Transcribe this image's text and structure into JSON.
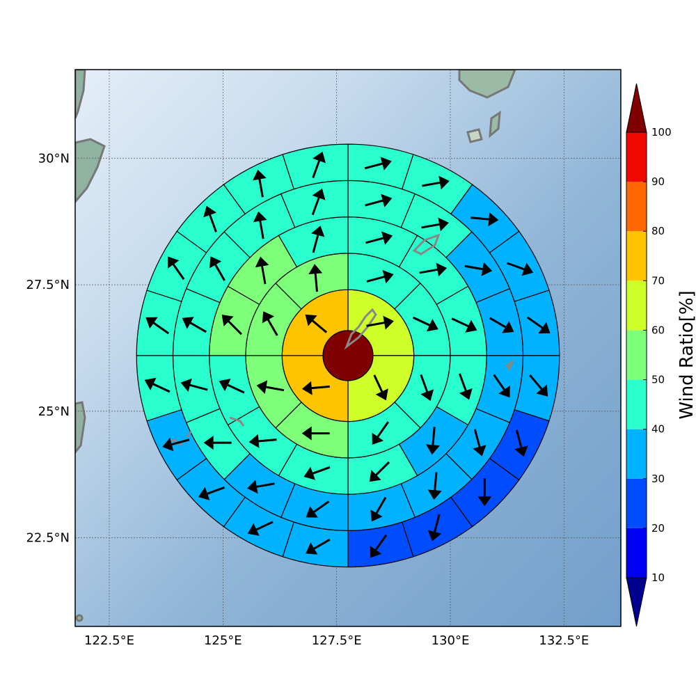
{
  "chart_data": {
    "type": "polar-sector-map",
    "map": {
      "lon_range": [
        121.75,
        133.75
      ],
      "lat_range": [
        20.75,
        31.75
      ],
      "lon_ticks": [
        122.5,
        125,
        127.5,
        130,
        132.5
      ],
      "lon_tick_labels": [
        "122.5°E",
        "125°E",
        "127.5°E",
        "130°E",
        "132.5°E"
      ],
      "lat_ticks": [
        22.5,
        25,
        27.5,
        30
      ],
      "lat_tick_labels": [
        "22.5°N",
        "25°N",
        "27.5°N",
        "30°N"
      ],
      "gridlines": true,
      "center": {
        "lon": 127.75,
        "lat": 26.1
      }
    },
    "colorbar": {
      "label": "Wind Ratio[%]",
      "ticks": [
        10,
        20,
        30,
        40,
        50,
        60,
        70,
        80,
        90,
        100
      ],
      "tick_labels": [
        "10",
        "20",
        "30",
        "40",
        "50",
        "60",
        "70",
        "80",
        "90",
        "100"
      ],
      "range": [
        10,
        100
      ],
      "extend": "both",
      "under_color": "#00008f",
      "over_color": "#800000",
      "band_colors": [
        "#0000f2",
        "#004cff",
        "#00b2ff",
        "#29ffce",
        "#7dff7a",
        "#ceff29",
        "#ffc400",
        "#ff6800",
        "#f10800"
      ]
    },
    "ring_radii_deg": [
      0.55,
      1.45,
      2.25,
      3.05,
      3.85,
      4.65
    ],
    "center": {
      "value": 100
    },
    "rings": [
      {
        "sectors": 4,
        "values": [
          65,
          60,
          75,
          75
        ],
        "arrow_dir": [
          80,
          155,
          265,
          310
        ]
      },
      {
        "sectors": 8,
        "values": [
          45,
          45,
          45,
          45,
          55,
          55,
          55,
          55
        ],
        "arrow_dir": [
          75,
          115,
          160,
          215,
          270,
          280,
          330,
          355
        ]
      },
      {
        "sectors": 12,
        "values": [
          45,
          45,
          45,
          45,
          35,
          45,
          45,
          45,
          45,
          55,
          55,
          45
        ],
        "arrow_dir": [
          75,
          80,
          115,
          160,
          185,
          225,
          250,
          265,
          295,
          315,
          350,
          15
        ]
      },
      {
        "sectors": 16,
        "values": [
          45,
          45,
          35,
          35,
          35,
          35,
          35,
          35,
          35,
          35,
          45,
          45,
          45,
          45,
          45,
          45
        ],
        "arrow_dir": [
          75,
          80,
          100,
          120,
          145,
          165,
          185,
          210,
          235,
          260,
          270,
          285,
          300,
          330,
          350,
          20
        ]
      },
      {
        "sectors": 20,
        "values": [
          45,
          45,
          35,
          35,
          35,
          35,
          25,
          25,
          25,
          25,
          35,
          35,
          35,
          35,
          45,
          45,
          45,
          45,
          45,
          45
        ],
        "arrow_dir": [
          75,
          80,
          95,
          110,
          125,
          140,
          165,
          180,
          195,
          215,
          240,
          245,
          250,
          255,
          295,
          305,
          325,
          340,
          350,
          20
        ]
      },
      {
        "sectors": 24,
        "values": [
          35,
          35,
          35,
          35,
          25,
          25,
          25,
          25,
          25,
          25,
          35,
          35,
          45,
          45,
          25,
          35,
          35,
          45,
          45,
          45,
          45,
          45,
          45,
          35
        ],
        "arrow_dir": [
          60,
          80,
          95,
          110,
          130,
          145,
          160,
          175,
          190,
          200,
          215,
          240,
          245,
          250,
          255,
          265,
          285,
          295,
          315,
          330,
          340,
          345,
          350,
          20
        ]
      }
    ]
  }
}
